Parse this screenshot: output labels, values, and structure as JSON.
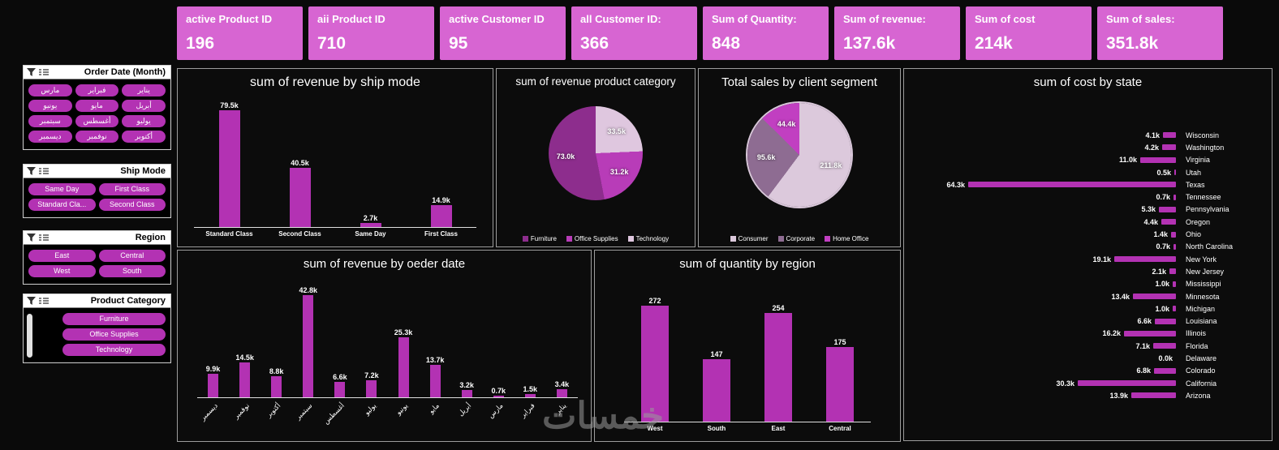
{
  "page": {
    "watermark": "خمسات"
  },
  "kpis": [
    {
      "label": "active Product ID",
      "value": "196"
    },
    {
      "label": "aii  Product ID",
      "value": "710"
    },
    {
      "label": "active Customer ID",
      "value": "95"
    },
    {
      "label": "all Customer ID:",
      "value": "366"
    },
    {
      "label": "Sum of Quantity:",
      "value": "848"
    },
    {
      "label": "Sum of revenue:",
      "value": "137.6k"
    },
    {
      "label": "Sum of cost",
      "value": "214k"
    },
    {
      "label": "Sum of sales:",
      "value": "351.8k"
    }
  ],
  "slicers": [
    {
      "title": "Order Date (Month)",
      "cols": 3,
      "items": [
        "مارس",
        "فبراير",
        "يناير",
        "يونيو",
        "مايو",
        "أبريل",
        "سبتمبر",
        "أغسطس",
        "يوليو",
        "ديسمبر",
        "نوفمبر",
        "أكتوبر"
      ]
    },
    {
      "title": "Ship Mode",
      "cols": 2,
      "items": [
        "Same Day",
        "First Class",
        "Standard Cla...",
        "Second Class"
      ]
    },
    {
      "title": "Region",
      "cols": 2,
      "items": [
        "East",
        "Central",
        "West",
        "South"
      ]
    },
    {
      "title": "Product Category",
      "cols": 1,
      "items": [
        "Furniture",
        "Office Supplies",
        "Technology"
      ]
    }
  ],
  "chart_data": [
    {
      "id": "ship",
      "type": "bar",
      "title": "sum of revenue by ship mode",
      "categories": [
        "Standard Class",
        "Second Class",
        "Same Day",
        "First Class"
      ],
      "values": [
        79.5,
        40.5,
        2.7,
        14.9
      ],
      "labels": [
        "79.5k",
        "40.5k",
        "2.7k",
        "14.9k"
      ],
      "ylim": [
        0,
        83
      ]
    },
    {
      "id": "pie-category",
      "type": "pie",
      "title": "sum of revenue product category",
      "slices": [
        {
          "name": "Technology",
          "value": 33.5,
          "label": "33.5k",
          "color": "#DFC7DF"
        },
        {
          "name": "Office Supplies",
          "value": 31.2,
          "label": "31.2k",
          "color": "#B83CB8"
        },
        {
          "name": "Furniture",
          "value": 73.0,
          "label": "73.0k",
          "color": "#8D2D8D"
        }
      ],
      "legend": [
        "Furniture",
        "Office Supplies",
        "Technology"
      ],
      "legend_colors": [
        "#8D2D8D",
        "#B83CB8",
        "#DFC7DF"
      ]
    },
    {
      "id": "pie-segment",
      "type": "pie",
      "title": "Total sales by client segment",
      "slices": [
        {
          "name": "Consumer",
          "value": 211.8,
          "label": "211.8k",
          "color": "#DCC9DC"
        },
        {
          "name": "Corporate",
          "value": 95.6,
          "label": "95.6k",
          "color": "#8E6C92"
        },
        {
          "name": "Home Office",
          "value": 44.4,
          "label": "44.4k",
          "color": "#C13FC1"
        }
      ],
      "legend": [
        "Consumer",
        "Corporate",
        "Home Office"
      ],
      "legend_colors": [
        "#DCC9DC",
        "#8E6C92",
        "#C13FC1"
      ]
    },
    {
      "id": "state",
      "type": "hbar",
      "title": "sum of cost by state",
      "categories": [
        "Wisconsin",
        "Washington",
        "Virginia",
        "Utah",
        "Texas",
        "Tennessee",
        "Pennsylvania",
        "Oregon",
        "Ohio",
        "North Carolina",
        "New York",
        "New Jersey",
        "Mississippi",
        "Minnesota",
        "Michigan",
        "Louisiana",
        "Illinois",
        "Florida",
        "Delaware",
        "Colorado",
        "California",
        "Arizona"
      ],
      "values": [
        4.1,
        4.2,
        11.0,
        0.5,
        64.3,
        0.7,
        5.3,
        4.4,
        1.4,
        0.7,
        19.1,
        2.1,
        1.0,
        13.4,
        1.0,
        6.6,
        16.2,
        7.1,
        0.0,
        6.8,
        30.3,
        13.9
      ],
      "labels": [
        "4.1k",
        "4.2k",
        "11.0k",
        "0.5k",
        "64.3k",
        "0.7k",
        "5.3k",
        "4.4k",
        "1.4k",
        "0.7k",
        "19.1k",
        "2.1k",
        "1.0k",
        "13.4k",
        "1.0k",
        "6.6k",
        "16.2k",
        "7.1k",
        "0.0k",
        "6.8k",
        "30.3k",
        "13.9k"
      ],
      "xlim": [
        0,
        64.3
      ]
    },
    {
      "id": "months",
      "type": "bar",
      "title": "sum of revenue by oeder date",
      "categories": [
        "ديسمبر",
        "نوفمبر",
        "أكتوبر",
        "سبتمبر",
        "أغسطس",
        "يوليو",
        "يونيو",
        "مايو",
        "أبريل",
        "مارس",
        "فبراير",
        "يناير"
      ],
      "values": [
        9.9,
        14.5,
        8.8,
        42.8,
        6.6,
        7.2,
        25.3,
        13.7,
        3.2,
        0.7,
        1.5,
        3.4
      ],
      "labels": [
        "9.9k",
        "14.5k",
        "8.8k",
        "42.8k",
        "6.6k",
        "7.2k",
        "25.3k",
        "13.7k",
        "3.2k",
        "0.7k",
        "1.5k",
        "3.4k"
      ],
      "ylim": [
        0,
        45
      ]
    },
    {
      "id": "region",
      "type": "bar",
      "title": "sum of quantity by region",
      "categories": [
        "West",
        "South",
        "East",
        "Central"
      ],
      "values": [
        272,
        147,
        254,
        175
      ],
      "labels": [
        "272",
        "147",
        "254",
        "175"
      ],
      "ylim": [
        0,
        300
      ]
    }
  ],
  "colors": {
    "accent": "#B332B3",
    "card": "#D765D2",
    "background": "#0a0a0a"
  }
}
